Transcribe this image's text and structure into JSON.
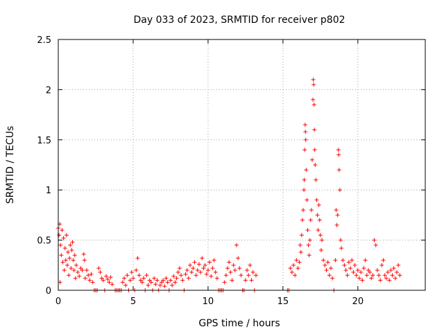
{
  "chart_data": {
    "type": "scatter",
    "title": "Day 033 of 2023, SRMTID for receiver p802",
    "xlabel": "GPS time / hours",
    "ylabel": "SRMTID / TECUs",
    "xlim": [
      0,
      24.5
    ],
    "ylim": [
      0,
      2.5
    ],
    "xticks": [
      0,
      5,
      10,
      15,
      20
    ],
    "xtick_labels": [
      "0",
      "5",
      "10",
      "15",
      "20"
    ],
    "yticks": [
      0,
      0.5,
      1,
      1.5,
      2,
      2.5
    ],
    "ytick_labels": [
      "0",
      "0.5",
      "1",
      "1.5",
      "2",
      "2.5"
    ],
    "grid": true,
    "marker": "+",
    "color": "#ff0000",
    "series": [
      {
        "name": "SRMTID",
        "points": [
          [
            0.0,
            0.62
          ],
          [
            0.05,
            0.55
          ],
          [
            0.1,
            0.66
          ],
          [
            0.12,
            0.08
          ],
          [
            0.15,
            0.45
          ],
          [
            0.2,
            0.35
          ],
          [
            0.25,
            0.6
          ],
          [
            0.3,
            0.28
          ],
          [
            0.35,
            0.52
          ],
          [
            0.4,
            0.2
          ],
          [
            0.45,
            0.42
          ],
          [
            0.5,
            0.3
          ],
          [
            0.55,
            0.55
          ],
          [
            0.6,
            0.25
          ],
          [
            0.65,
            0.38
          ],
          [
            0.7,
            0.15
          ],
          [
            0.75,
            0.32
          ],
          [
            0.8,
            0.45
          ],
          [
            0.85,
            0.22
          ],
          [
            0.9,
            0.4
          ],
          [
            0.95,
            0.48
          ],
          [
            1.0,
            0.3
          ],
          [
            1.05,
            0.2
          ],
          [
            1.1,
            0.35
          ],
          [
            1.15,
            0.12
          ],
          [
            1.2,
            0.25
          ],
          [
            1.3,
            0.18
          ],
          [
            1.4,
            0.14
          ],
          [
            1.5,
            0.22
          ],
          [
            1.6,
            0.2
          ],
          [
            1.7,
            0.36
          ],
          [
            1.75,
            0.3
          ],
          [
            1.8,
            0.12
          ],
          [
            1.9,
            0.2
          ],
          [
            2.0,
            0.15
          ],
          [
            2.1,
            0.1
          ],
          [
            2.2,
            0.16
          ],
          [
            2.3,
            0.08
          ],
          [
            2.4,
            0.0
          ],
          [
            2.5,
            0.0
          ],
          [
            2.6,
            0.0
          ],
          [
            2.7,
            0.22
          ],
          [
            2.8,
            0.18
          ],
          [
            2.9,
            0.12
          ],
          [
            3.0,
            0.1
          ],
          [
            3.1,
            0.0
          ],
          [
            3.2,
            0.14
          ],
          [
            3.3,
            0.11
          ],
          [
            3.4,
            0.08
          ],
          [
            3.5,
            0.13
          ],
          [
            3.6,
            0.06
          ],
          [
            3.8,
            0.0
          ],
          [
            3.9,
            0.0
          ],
          [
            4.0,
            0.0
          ],
          [
            4.1,
            0.0
          ],
          [
            4.2,
            0.0
          ],
          [
            4.3,
            0.08
          ],
          [
            4.4,
            0.12
          ],
          [
            4.5,
            0.05
          ],
          [
            4.6,
            0.15
          ],
          [
            4.7,
            0.0
          ],
          [
            4.8,
            0.1
          ],
          [
            4.9,
            0.18
          ],
          [
            5.0,
            0.12
          ],
          [
            5.1,
            0.0
          ],
          [
            5.2,
            0.2
          ],
          [
            5.3,
            0.32
          ],
          [
            5.4,
            0.15
          ],
          [
            5.5,
            0.1
          ],
          [
            5.6,
            0.08
          ],
          [
            5.7,
            0.12
          ],
          [
            5.8,
            0.0
          ],
          [
            5.9,
            0.15
          ],
          [
            6.0,
            0.05
          ],
          [
            6.1,
            0.1
          ],
          [
            6.2,
            0.08
          ],
          [
            6.3,
            0.0
          ],
          [
            6.4,
            0.12
          ],
          [
            6.5,
            0.06
          ],
          [
            6.6,
            0.1
          ],
          [
            6.7,
            0.0
          ],
          [
            6.8,
            0.05
          ],
          [
            6.9,
            0.08
          ],
          [
            7.0,
            0.1
          ],
          [
            7.1,
            0.04
          ],
          [
            7.2,
            0.12
          ],
          [
            7.3,
            0.08
          ],
          [
            7.4,
            0.0
          ],
          [
            7.5,
            0.1
          ],
          [
            7.6,
            0.05
          ],
          [
            7.7,
            0.14
          ],
          [
            7.8,
            0.08
          ],
          [
            7.9,
            0.12
          ],
          [
            8.0,
            0.18
          ],
          [
            8.1,
            0.22
          ],
          [
            8.2,
            0.15
          ],
          [
            8.3,
            0.1
          ],
          [
            8.4,
            0.0
          ],
          [
            8.5,
            0.16
          ],
          [
            8.6,
            0.2
          ],
          [
            8.7,
            0.12
          ],
          [
            8.8,
            0.25
          ],
          [
            8.9,
            0.18
          ],
          [
            9.0,
            0.22
          ],
          [
            9.1,
            0.28
          ],
          [
            9.2,
            0.15
          ],
          [
            9.3,
            0.2
          ],
          [
            9.4,
            0.26
          ],
          [
            9.5,
            0.18
          ],
          [
            9.6,
            0.32
          ],
          [
            9.7,
            0.22
          ],
          [
            9.8,
            0.25
          ],
          [
            9.9,
            0.16
          ],
          [
            10.0,
            0.2
          ],
          [
            10.1,
            0.28
          ],
          [
            10.2,
            0.14
          ],
          [
            10.3,
            0.22
          ],
          [
            10.4,
            0.3
          ],
          [
            10.5,
            0.18
          ],
          [
            10.6,
            0.12
          ],
          [
            10.7,
            0.0
          ],
          [
            10.8,
            0.0
          ],
          [
            10.9,
            0.0
          ],
          [
            11.0,
            0.0
          ],
          [
            11.1,
            0.08
          ],
          [
            11.2,
            0.15
          ],
          [
            11.3,
            0.22
          ],
          [
            11.4,
            0.28
          ],
          [
            11.5,
            0.18
          ],
          [
            11.6,
            0.1
          ],
          [
            11.7,
            0.25
          ],
          [
            11.8,
            0.2
          ],
          [
            11.9,
            0.45
          ],
          [
            12.0,
            0.32
          ],
          [
            12.1,
            0.22
          ],
          [
            12.2,
            0.15
          ],
          [
            12.3,
            0.0
          ],
          [
            12.4,
            0.0
          ],
          [
            12.5,
            0.1
          ],
          [
            12.6,
            0.2
          ],
          [
            12.7,
            0.15
          ],
          [
            12.8,
            0.25
          ],
          [
            12.9,
            0.1
          ],
          [
            13.0,
            0.18
          ],
          [
            13.1,
            0.0
          ],
          [
            13.2,
            0.15
          ],
          [
            15.3,
            0.0
          ],
          [
            15.4,
            0.0
          ],
          [
            15.5,
            0.22
          ],
          [
            15.6,
            0.18
          ],
          [
            15.7,
            0.25
          ],
          [
            15.8,
            0.15
          ],
          [
            15.9,
            0.3
          ],
          [
            16.0,
            0.22
          ],
          [
            16.1,
            0.28
          ],
          [
            16.15,
            0.45
          ],
          [
            16.2,
            0.38
          ],
          [
            16.25,
            0.55
          ],
          [
            16.3,
            0.7
          ],
          [
            16.35,
            0.8
          ],
          [
            16.4,
            1.0
          ],
          [
            16.42,
            1.1
          ],
          [
            16.45,
            1.4
          ],
          [
            16.48,
            1.65
          ],
          [
            16.5,
            1.58
          ],
          [
            16.52,
            1.5
          ],
          [
            16.55,
            1.2
          ],
          [
            16.6,
            0.9
          ],
          [
            16.65,
            0.6
          ],
          [
            16.7,
            0.45
          ],
          [
            16.75,
            0.35
          ],
          [
            16.8,
            0.5
          ],
          [
            16.85,
            0.7
          ],
          [
            16.9,
            0.8
          ],
          [
            16.95,
            1.3
          ],
          [
            17.0,
            1.9
          ],
          [
            17.02,
            2.1
          ],
          [
            17.05,
            2.05
          ],
          [
            17.08,
            1.85
          ],
          [
            17.1,
            1.6
          ],
          [
            17.12,
            1.4
          ],
          [
            17.15,
            1.25
          ],
          [
            17.2,
            1.1
          ],
          [
            17.25,
            0.9
          ],
          [
            17.3,
            0.75
          ],
          [
            17.35,
            0.6
          ],
          [
            17.4,
            0.85
          ],
          [
            17.45,
            0.7
          ],
          [
            17.5,
            0.55
          ],
          [
            17.55,
            0.4
          ],
          [
            17.6,
            0.5
          ],
          [
            17.7,
            0.3
          ],
          [
            17.8,
            0.25
          ],
          [
            17.9,
            0.2
          ],
          [
            18.0,
            0.28
          ],
          [
            18.1,
            0.15
          ],
          [
            18.2,
            0.22
          ],
          [
            18.3,
            0.12
          ],
          [
            18.4,
            0.0
          ],
          [
            18.5,
            0.3
          ],
          [
            18.55,
            0.8
          ],
          [
            18.6,
            0.65
          ],
          [
            18.65,
            0.75
          ],
          [
            18.7,
            1.4
          ],
          [
            18.72,
            1.35
          ],
          [
            18.75,
            1.2
          ],
          [
            18.8,
            1.0
          ],
          [
            18.85,
            0.5
          ],
          [
            18.9,
            0.42
          ],
          [
            19.0,
            0.3
          ],
          [
            19.1,
            0.25
          ],
          [
            19.2,
            0.2
          ],
          [
            19.3,
            0.15
          ],
          [
            19.4,
            0.28
          ],
          [
            19.5,
            0.22
          ],
          [
            19.6,
            0.3
          ],
          [
            19.7,
            0.18
          ],
          [
            19.8,
            0.25
          ],
          [
            19.9,
            0.15
          ],
          [
            20.0,
            0.2
          ],
          [
            20.1,
            0.12
          ],
          [
            20.2,
            0.18
          ],
          [
            20.3,
            0.1
          ],
          [
            20.4,
            0.22
          ],
          [
            20.5,
            0.3
          ],
          [
            20.6,
            0.15
          ],
          [
            20.7,
            0.2
          ],
          [
            20.8,
            0.18
          ],
          [
            20.9,
            0.12
          ],
          [
            21.0,
            0.15
          ],
          [
            21.1,
            0.5
          ],
          [
            21.2,
            0.45
          ],
          [
            21.3,
            0.2
          ],
          [
            21.4,
            0.15
          ],
          [
            21.5,
            0.1
          ],
          [
            21.6,
            0.25
          ],
          [
            21.7,
            0.3
          ],
          [
            21.8,
            0.15
          ],
          [
            21.9,
            0.12
          ],
          [
            22.0,
            0.18
          ],
          [
            22.1,
            0.1
          ],
          [
            22.2,
            0.2
          ],
          [
            22.3,
            0.15
          ],
          [
            22.4,
            0.22
          ],
          [
            22.5,
            0.12
          ],
          [
            22.6,
            0.18
          ],
          [
            22.7,
            0.25
          ],
          [
            22.8,
            0.15
          ]
        ]
      }
    ]
  }
}
